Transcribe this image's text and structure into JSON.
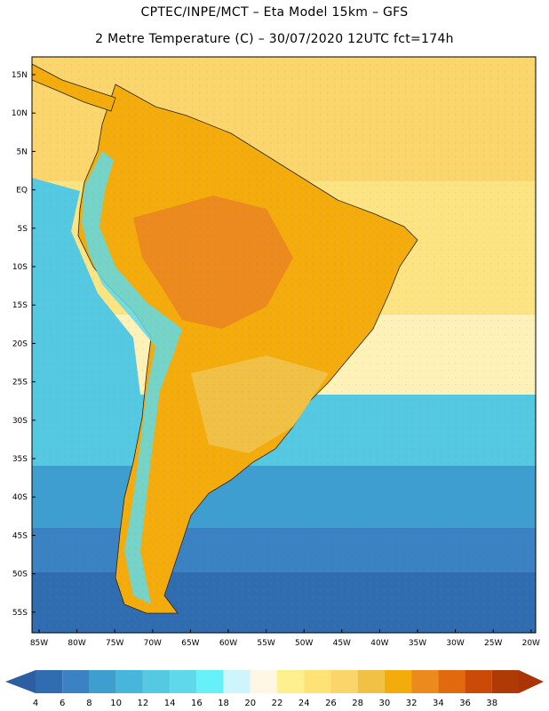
{
  "header": {
    "line1": "CPTEC/INPE/MCT –  Eta Model 15km – GFS",
    "line2": "2 Metre Temperature (C) – 30/07/2020 12UTC fct=174h"
  },
  "axes": {
    "lat_labels": [
      "15N",
      "10N",
      "5N",
      "EQ",
      "5S",
      "10S",
      "15S",
      "20S",
      "25S",
      "30S",
      "35S",
      "40S",
      "45S",
      "50S",
      "55S"
    ],
    "lon_labels": [
      "85W",
      "80W",
      "75W",
      "70W",
      "65W",
      "60W",
      "55W",
      "50W",
      "45W",
      "40W",
      "35W",
      "30W",
      "25W",
      "20W"
    ]
  },
  "colorbar": {
    "labels": [
      "4",
      "6",
      "8",
      "10",
      "12",
      "14",
      "16",
      "18",
      "20",
      "22",
      "24",
      "26",
      "28",
      "30",
      "32",
      "34",
      "36",
      "38"
    ],
    "colors": [
      "#2f6db0",
      "#3a82c4",
      "#3f9ed0",
      "#47b6dc",
      "#55c9e2",
      "#5fd9ea",
      "#66f0f8",
      "#cdf5fb",
      "#fdf7e4",
      "#fef08f",
      "#fde375",
      "#f9d56a",
      "#f1c146",
      "#f4ac0c",
      "#ec8a1e",
      "#e06a0d",
      "#cc4a08",
      "#b03a06"
    ],
    "low_arrow_color": "#2c5ea2",
    "high_arrow_color": "#aa3405"
  },
  "map_colors": {
    "ocean_north": "#fbd66d",
    "ocean_north2": "#fde483",
    "ocean_mid": "#fef2b8",
    "ocean_cool": "#55c9e2",
    "ocean_cold": "#3f9ed0",
    "ocean_colder": "#3a82c4",
    "ocean_coldest": "#2f6db0",
    "land_hot": "#ec8a1e",
    "land_warm": "#f4ac0c",
    "land_mild": "#f1c146",
    "andes": "#5fd9ea"
  }
}
